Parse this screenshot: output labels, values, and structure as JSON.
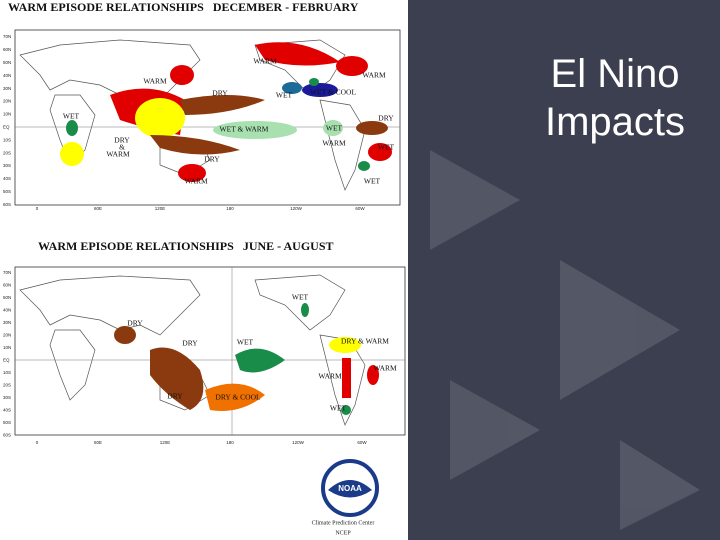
{
  "slide": {
    "title_lines": [
      "El Nino",
      "Impacts"
    ]
  },
  "maps": [
    {
      "title": "WARM EPISODE RELATIONSHIPS   DECEMBER - FEBRUARY",
      "lat_labels": [
        "70N",
        "60N",
        "50N",
        "40N",
        "30N",
        "20N",
        "10N",
        "EQ",
        "10S",
        "20S",
        "30S",
        "40S",
        "50S",
        "60S"
      ],
      "lon_labels": [
        "0",
        "60E",
        "120E",
        "180",
        "120W",
        "60W"
      ],
      "regions": [
        "WARM",
        "WARM",
        "DRY",
        "WET",
        "WET & COOL",
        "WARM",
        "WET",
        "DRY",
        "DRY",
        "&",
        "WARM",
        "WET & WARM",
        "WET",
        "WARM",
        "WET",
        "DRY",
        "WARM",
        "WET"
      ]
    },
    {
      "title": "WARM EPISODE RELATIONSHIPS   JUNE - AUGUST",
      "lat_labels": [
        "70N",
        "60N",
        "50N",
        "40N",
        "30N",
        "20N",
        "10N",
        "EQ",
        "10S",
        "20S",
        "30S",
        "40S",
        "50S",
        "60S"
      ],
      "lon_labels": [
        "0",
        "60E",
        "120E",
        "180",
        "120W",
        "60W"
      ],
      "regions": [
        "WET",
        "DRY",
        "DRY",
        "WET",
        "DRY & WARM",
        "WARM",
        "WARM",
        "DRY",
        "DRY & COOL",
        "WET"
      ]
    }
  ],
  "logo": {
    "emblem": "NOAA",
    "caption": [
      "Climate Prediction Center",
      "NCEP"
    ]
  }
}
